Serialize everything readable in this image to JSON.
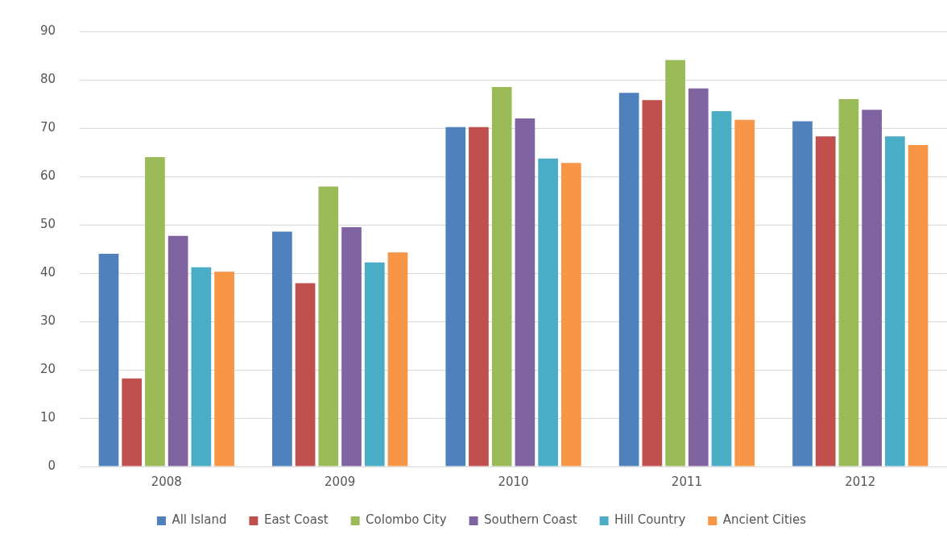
{
  "chart_data": {
    "type": "bar",
    "categories": [
      "2008",
      "2009",
      "2010",
      "2011",
      "2012"
    ],
    "series": [
      {
        "name": "All Island",
        "color": "#4f81bd",
        "values": [
          44,
          48.6,
          70.2,
          77.3,
          71.4
        ]
      },
      {
        "name": "East Coast",
        "color": "#c0504d",
        "values": [
          18.2,
          37.9,
          70.2,
          75.8,
          68.3
        ]
      },
      {
        "name": "Colombo City",
        "color": "#9bbb59",
        "values": [
          64,
          57.9,
          78.5,
          84.1,
          76
        ]
      },
      {
        "name": "Southern Coast",
        "color": "#8064a2",
        "values": [
          47.7,
          49.5,
          72,
          78.2,
          73.8
        ]
      },
      {
        "name": "Hill Country",
        "color": "#4bacc6",
        "values": [
          41.2,
          42.2,
          63.7,
          73.5,
          68.3
        ]
      },
      {
        "name": "Ancient Cities",
        "color": "#f79646",
        "values": [
          40.3,
          44.3,
          62.8,
          71.7,
          66.5
        ]
      }
    ],
    "ylim": [
      0,
      90
    ],
    "yticks": [
      0,
      10,
      20,
      30,
      40,
      50,
      60,
      70,
      80,
      90
    ],
    "grid": "y",
    "legend": "bottom"
  }
}
